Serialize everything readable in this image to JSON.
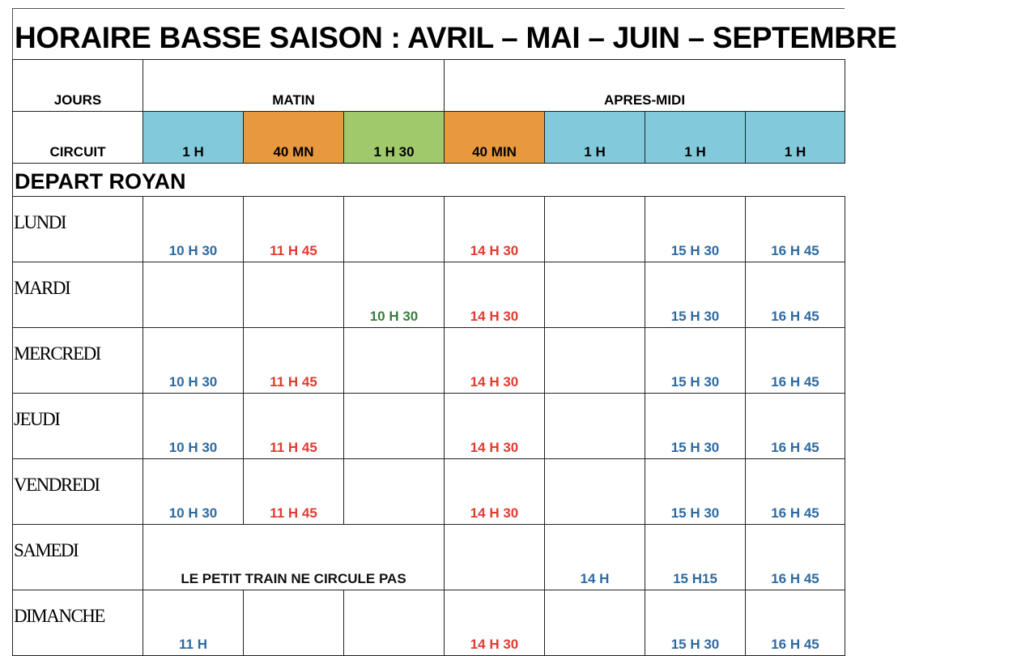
{
  "title": "HORAIRE BASSE SAISON : AVRIL – MAI – JUIN – SEPTEMBRE",
  "header": {
    "jours": "JOURS",
    "matin": "MATIN",
    "apres_midi": "APRES-MIDI",
    "circuit": "CIRCUIT",
    "circuits": [
      {
        "label": "1 H",
        "color": "#82cadb"
      },
      {
        "label": "40 MN",
        "color": "#e8993e"
      },
      {
        "label": "1 H 30",
        "color": "#9fc96b"
      },
      {
        "label": "40 MIN",
        "color": "#e8993e"
      },
      {
        "label": "1 H",
        "color": "#82cadb"
      },
      {
        "label": "1 H",
        "color": "#82cadb"
      },
      {
        "label": "1 H",
        "color": "#82cadb"
      }
    ]
  },
  "section": "DEPART ROYAN",
  "colors": {
    "blue": "#2e6aa1",
    "red": "#e03c31",
    "green": "#3b7d3b"
  },
  "rows": [
    {
      "day": "LUNDI",
      "cells": [
        {
          "t": "10 H 30",
          "c": "blue"
        },
        {
          "t": "11 H 45",
          "c": "red"
        },
        {
          "t": ""
        },
        {
          "t": "14 H 30",
          "c": "red"
        },
        {
          "t": ""
        },
        {
          "t": "15 H 30",
          "c": "blue"
        },
        {
          "t": "16 H 45",
          "c": "blue"
        }
      ]
    },
    {
      "day": "MARDI",
      "cells": [
        {
          "t": ""
        },
        {
          "t": ""
        },
        {
          "t": "10 H 30",
          "c": "green"
        },
        {
          "t": "14 H 30",
          "c": "red"
        },
        {
          "t": ""
        },
        {
          "t": "15 H 30",
          "c": "blue"
        },
        {
          "t": "16 H 45",
          "c": "blue"
        }
      ]
    },
    {
      "day": "MERCREDI",
      "cells": [
        {
          "t": "10 H 30",
          "c": "blue"
        },
        {
          "t": "11 H 45",
          "c": "red"
        },
        {
          "t": ""
        },
        {
          "t": "14 H 30",
          "c": "red"
        },
        {
          "t": ""
        },
        {
          "t": "15 H 30",
          "c": "blue"
        },
        {
          "t": "16 H 45",
          "c": "blue"
        }
      ]
    },
    {
      "day": "JEUDI",
      "cells": [
        {
          "t": "10 H 30",
          "c": "blue"
        },
        {
          "t": "11 H 45",
          "c": "red"
        },
        {
          "t": ""
        },
        {
          "t": "14 H 30",
          "c": "red"
        },
        {
          "t": ""
        },
        {
          "t": "15 H 30",
          "c": "blue"
        },
        {
          "t": "16 H 45",
          "c": "blue"
        }
      ]
    },
    {
      "day": "VENDREDI",
      "cells": [
        {
          "t": "10 H 30",
          "c": "blue"
        },
        {
          "t": "11 H 45",
          "c": "red"
        },
        {
          "t": ""
        },
        {
          "t": "14 H 30",
          "c": "red"
        },
        {
          "t": ""
        },
        {
          "t": "15 H 30",
          "c": "blue"
        },
        {
          "t": "16 H 45",
          "c": "blue"
        }
      ]
    },
    {
      "day": "SAMEDI",
      "cells": [
        {
          "t": "LE PETIT TRAIN NE CIRCULE PAS",
          "c": "black",
          "span": 3
        },
        {
          "t": ""
        },
        {
          "t": "14 H",
          "c": "blue"
        },
        {
          "t": "15 H15",
          "c": "blue"
        },
        {
          "t": "16 H 45",
          "c": "blue"
        }
      ]
    },
    {
      "day": "DIMANCHE",
      "cells": [
        {
          "t": "11 H",
          "c": "blue"
        },
        {
          "t": ""
        },
        {
          "t": ""
        },
        {
          "t": "14 H 30",
          "c": "red"
        },
        {
          "t": ""
        },
        {
          "t": "15 H 30",
          "c": "blue"
        },
        {
          "t": "16 H 45",
          "c": "blue"
        }
      ]
    }
  ]
}
